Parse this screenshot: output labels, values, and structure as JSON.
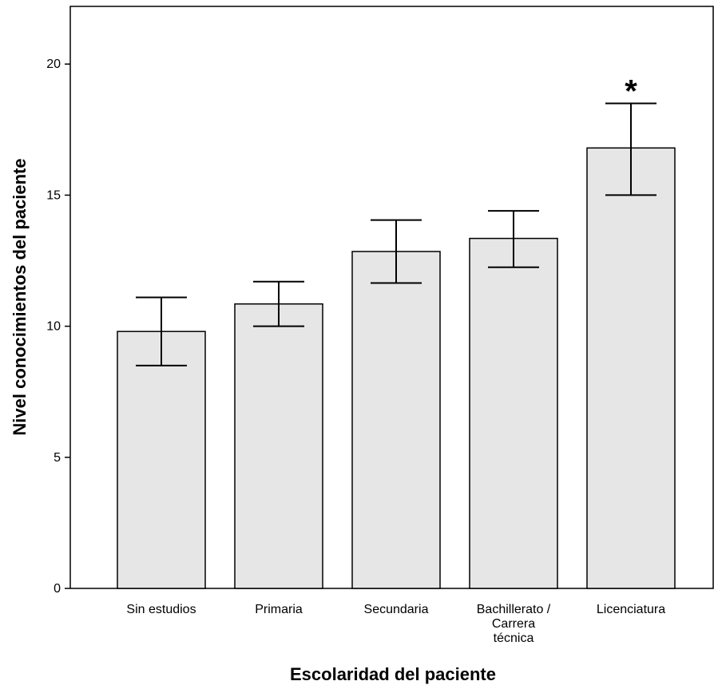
{
  "chart_data": {
    "type": "bar",
    "categories": [
      [
        "Sin estudios"
      ],
      [
        "Primaria"
      ],
      [
        "Secundaria"
      ],
      [
        "Bachillerato /",
        "Carrera",
        "técnica"
      ],
      [
        "Licenciatura"
      ]
    ],
    "values": [
      9.8,
      10.85,
      12.85,
      13.35,
      16.8
    ],
    "error_low": [
      8.5,
      10.0,
      11.65,
      12.25,
      15.0
    ],
    "error_high": [
      11.1,
      11.7,
      14.05,
      14.4,
      18.5
    ],
    "xlabel": "Escolaridad del paciente",
    "ylabel": "Nivel conocimientos del paciente",
    "ylim": [
      0,
      22.2
    ],
    "yticks": [
      0,
      5,
      10,
      15,
      20
    ],
    "annotations": [
      {
        "category_index": 4,
        "text": "*"
      }
    ],
    "grid": false,
    "bar_color": "#e6e6e6",
    "bar_edge_color": "#000000"
  }
}
